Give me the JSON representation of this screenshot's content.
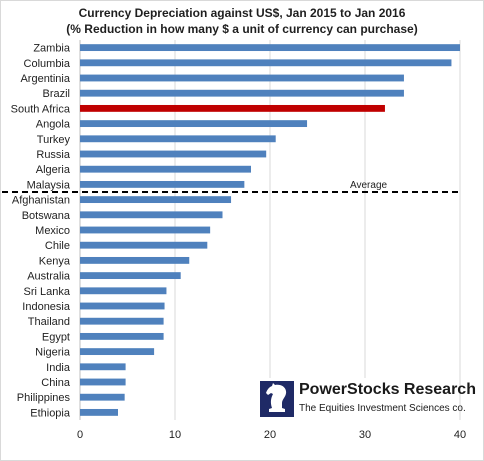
{
  "chart_data": {
    "type": "bar",
    "orientation": "horizontal",
    "title": "Currency Depreciation against US$, Jan 2015 to Jan 2016",
    "subtitle": "(% Reduction in how many $ a unit of currency can purchase)",
    "categories": [
      "Zambia",
      "Columbia",
      "Argentinia",
      "Brazil",
      "South Africa",
      "Angola",
      "Turkey",
      "Russia",
      "Algeria",
      "Malaysia",
      "Afghanistan",
      "Botswana",
      "Mexico",
      "Chile",
      "Kenya",
      "Australia",
      "Sri Lanka",
      "Indonesia",
      "Thailand",
      "Egypt",
      "Nigeria",
      "India",
      "China",
      "Philippines",
      "Ethiopia"
    ],
    "values": [
      40.0,
      39.1,
      34.1,
      34.1,
      32.1,
      23.9,
      20.6,
      19.6,
      18.0,
      17.3,
      15.9,
      15.0,
      13.7,
      13.4,
      11.5,
      10.6,
      9.1,
      8.9,
      8.8,
      8.8,
      7.8,
      4.8,
      4.8,
      4.7,
      4.0
    ],
    "highlight": {
      "category": "South Africa",
      "color": "#c00000"
    },
    "bar_color": "#4f81bd",
    "xlim": [
      0,
      40
    ],
    "xticks": [
      0,
      10,
      20,
      30,
      40
    ],
    "xlabel": "",
    "ylabel": "",
    "grid": true,
    "grid_color": "#d9d9d9",
    "reference_line": {
      "label": "Average",
      "after_category": "Malaysia",
      "style": "dashed",
      "color": "#000000"
    }
  },
  "logo": {
    "name": "PowerStocks Research",
    "tagline": "The Equities Investment Sciences co.",
    "mark_color": "#1f2a66"
  }
}
